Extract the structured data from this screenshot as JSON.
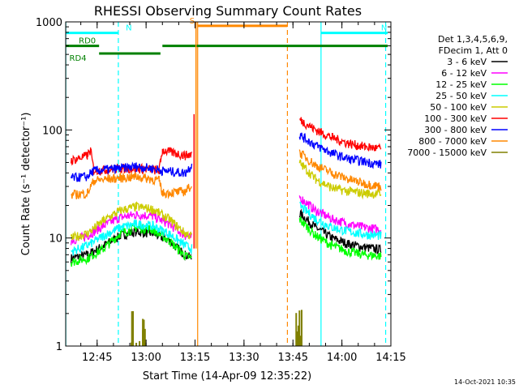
{
  "chart_data": {
    "type": "line",
    "title": "RHESSI Observing Summary Count Rates",
    "xlabel": "Start Time (14-Apr-09 12:35:22)",
    "ylabel": "Count Rate (s⁻¹ detector⁻¹)",
    "y_scale": "log",
    "ylim": [
      1,
      1000
    ],
    "xlim": [
      "12:35:22",
      "14:15:00"
    ],
    "x_ticks": [
      "12:45",
      "13:00",
      "13:15",
      "13:30",
      "13:45",
      "14:00",
      "14:15"
    ],
    "y_ticks": [
      "1",
      "10",
      "100",
      "1000"
    ],
    "legend_header": [
      "Det 1,3,4,5,6,9,",
      "FDecim 1, Att 0"
    ],
    "legend_position": "right",
    "series": [
      {
        "name": "3 - 6 keV",
        "color": "#000000",
        "segments": [
          {
            "x": [
              "12:37",
              "12:42",
              "12:47",
              "12:52",
              "12:57",
              "13:02",
              "13:07",
              "13:12",
              "13:14"
            ],
            "y": [
              6.5,
              7,
              8.5,
              10.5,
              11.5,
              11,
              9.5,
              7,
              6.5
            ]
          },
          {
            "x": [
              "13:47",
              "13:52",
              "13:57",
              "14:02",
              "14:07",
              "14:12"
            ],
            "y": [
              17,
              12.5,
              10,
              8.8,
              8.2,
              7.8
            ]
          }
        ]
      },
      {
        "name": "6 - 12 keV",
        "color": "#ff00ff",
        "segments": [
          {
            "x": [
              "12:37",
              "12:42",
              "12:47",
              "12:52",
              "12:57",
              "13:02",
              "13:07",
              "13:12",
              "13:14"
            ],
            "y": [
              9.5,
              10.5,
              13,
              15.5,
              16.5,
              16,
              13.5,
              10.5,
              10
            ]
          },
          {
            "x": [
              "13:47",
              "13:52",
              "13:57",
              "14:02",
              "14:07",
              "14:12"
            ],
            "y": [
              24,
              18,
              15,
              13.5,
              12.5,
              12
            ]
          }
        ]
      },
      {
        "name": "12 - 25 keV",
        "color": "#00ff00",
        "segments": [
          {
            "x": [
              "12:37",
              "12:42",
              "12:47",
              "12:52",
              "12:57",
              "13:02",
              "13:07",
              "13:12",
              "13:14"
            ],
            "y": [
              6,
              6.5,
              8,
              11,
              12.5,
              12,
              9.5,
              6.8,
              6.5
            ]
          },
          {
            "x": [
              "13:47",
              "13:52",
              "13:57",
              "14:02",
              "14:07",
              "14:12"
            ],
            "y": [
              15,
              10.5,
              8.5,
              7.5,
              7,
              6.8
            ]
          }
        ]
      },
      {
        "name": "25 - 50 keV",
        "color": "#00ffff",
        "segments": [
          {
            "x": [
              "12:37",
              "12:42",
              "12:47",
              "12:52",
              "12:57",
              "13:02",
              "13:07",
              "13:12",
              "13:14"
            ],
            "y": [
              7.5,
              8.5,
              10.5,
              12.5,
              13.5,
              13,
              11,
              8.5,
              8
            ]
          },
          {
            "x": [
              "13:47",
              "13:52",
              "13:57",
              "14:02",
              "14:07",
              "14:12"
            ],
            "y": [
              20,
              15,
              12.5,
              11.5,
              10.8,
              10.5
            ]
          }
        ]
      },
      {
        "name": "50 - 100 keV",
        "color": "#cccc00",
        "segments": [
          {
            "x": [
              "12:37",
              "12:42",
              "12:47",
              "12:52",
              "12:57",
              "13:02",
              "13:07",
              "13:12",
              "13:14"
            ],
            "y": [
              10,
              11,
              14.5,
              18,
              19.5,
              18.5,
              15,
              11,
              10.5
            ]
          },
          {
            "x": [
              "13:47",
              "13:52",
              "13:57",
              "14:02",
              "14:07",
              "14:12"
            ],
            "y": [
              50,
              35,
              29,
              27,
              26,
              25.5
            ]
          }
        ]
      },
      {
        "name": "100 - 300 keV",
        "color": "#ff0000",
        "segments": [
          {
            "x": [
              "12:37",
              "12:42",
              "12:43",
              "12:44",
              "12:52",
              "12:57",
              "13:02",
              "13:04",
              "13:05",
              "13:12",
              "13:14"
            ],
            "y": [
              52,
              58,
              65,
              42,
              44,
              44,
              43,
              42,
              65,
              58,
              60
            ]
          },
          {
            "x": [
              "13:47",
              "13:52",
              "13:57",
              "14:02",
              "14:07",
              "14:12"
            ],
            "y": [
              125,
              100,
              85,
              75,
              70,
              67
            ]
          }
        ]
      },
      {
        "name": "300 - 800 keV",
        "color": "#0000ff",
        "segments": [
          {
            "x": [
              "12:37",
              "12:42",
              "12:43",
              "12:44",
              "12:52",
              "12:57",
              "13:02",
              "13:04",
              "13:05",
              "13:12",
              "13:14"
            ],
            "y": [
              36,
              37,
              40,
              42,
              44,
              46,
              44,
              43,
              42,
              40,
              48
            ]
          },
          {
            "x": [
              "13:47",
              "13:52",
              "13:57",
              "14:02",
              "14:07",
              "14:12"
            ],
            "y": [
              90,
              72,
              61,
              54,
              51,
              48
            ]
          }
        ]
      },
      {
        "name": "800 - 7000 keV",
        "color": "#ff8800",
        "segments": [
          {
            "x": [
              "12:37",
              "12:42",
              "12:44",
              "12:52",
              "12:57",
              "13:02",
              "13:04",
              "13:05",
              "13:12",
              "13:14"
            ],
            "y": [
              25,
              26,
              34,
              36,
              37,
              35,
              34,
              26,
              27,
              31
            ]
          },
          {
            "x": [
              "13:47",
              "13:52",
              "13:57",
              "14:02",
              "14:07",
              "14:12"
            ],
            "y": [
              62,
              47,
              40,
              35,
              32,
              30
            ]
          }
        ]
      },
      {
        "name": "7000 - 15000 keV",
        "color": "#808000",
        "segments": [
          {
            "x": [
              "12:55.5",
              "12:56",
              "12:59",
              "13:00"
            ],
            "y": [
              1.8,
              1.8,
              1.8,
              1.8
            ]
          },
          {
            "x": [
              "13:46",
              "13:47",
              "13:48"
            ],
            "y": [
              1.8,
              1.8,
              1.8
            ]
          }
        ]
      }
    ],
    "spikes": [
      {
        "time": "13:14.7",
        "color": "#ff0000",
        "y": 140
      },
      {
        "time": "13:15.3",
        "color": "#ff8800",
        "y": 1000
      }
    ],
    "vlines": [
      {
        "time": "12:35.4",
        "color": "#00ffff",
        "style": "solid"
      },
      {
        "time": "12:51.5",
        "color": "#00ffff",
        "style": "dash"
      },
      {
        "time": "13:15.8",
        "color": "#ff8800",
        "style": "solid"
      },
      {
        "time": "13:43.3",
        "color": "#ff8800",
        "style": "dash"
      },
      {
        "time": "13:53.6",
        "color": "#00ffff",
        "style": "solid"
      },
      {
        "time": "14:13.4",
        "color": "#00ffff",
        "style": "dash"
      }
    ],
    "flag_bars": [
      {
        "label": "N",
        "color": "#00ffff",
        "start": "12:35.4",
        "end": "12:51.5",
        "y": 790
      },
      {
        "label": "N",
        "color": "#00ffff",
        "start": "13:53.6",
        "end": "14:14.0",
        "y": 790
      },
      {
        "label": "S",
        "color": "#ff8800",
        "start": "13:15.8",
        "end": "13:43.3",
        "y": 920
      },
      {
        "label": "RD0",
        "color": "#008000",
        "start": "12:35.4",
        "end": "12:45.6",
        "y": 600
      },
      {
        "label": "RD4",
        "color": "#008000",
        "start": "12:45.6",
        "end": "13:04.4",
        "y": 510
      },
      {
        "label": "",
        "color": "#008000",
        "start": "13:05.0",
        "end": "14:14.0",
        "y": 600
      }
    ]
  },
  "footer": {
    "timestamp": "14-Oct-2021 10:35"
  }
}
